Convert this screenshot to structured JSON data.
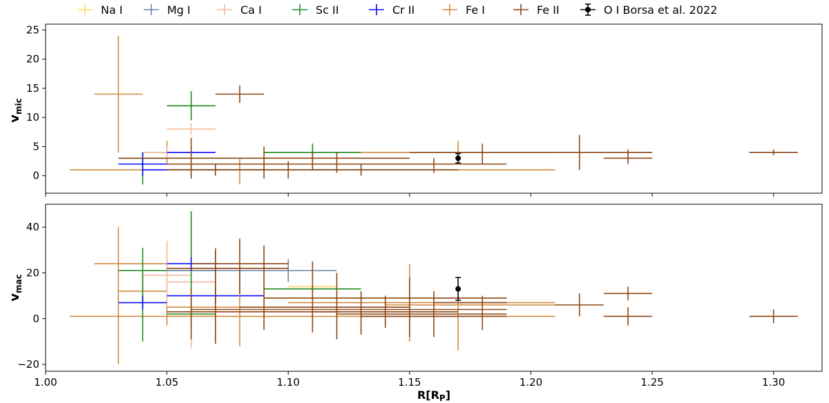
{
  "chart_data": {
    "type": "errorbar",
    "xlabel": "R[R",
    "xlabel_sub": "P",
    "xlabel_end": "]",
    "xlim": [
      1.0,
      1.32
    ],
    "xticks": [
      "1.00",
      "1.05",
      "1.10",
      "1.15",
      "1.20",
      "1.25",
      "1.30"
    ],
    "xtick_values": [
      1.0,
      1.05,
      1.1,
      1.15,
      1.2,
      1.25,
      1.3
    ],
    "legend_position": "top",
    "colors": {
      "Na I": "#ffd966",
      "Mg I": "#7080a8",
      "Ca I": "#f4b89a",
      "Sc II": "#1a8a1a",
      "Cr II": "#0a0aff",
      "Fe I": "#d28a3e",
      "Fe II": "#8b4513",
      "O I Borsa et al. 2022": "#000000"
    },
    "legend": [
      "Na I",
      "Mg I",
      "Ca I",
      "Sc II",
      "Cr II",
      "Fe I",
      "Fe II",
      "O I Borsa et al. 2022"
    ],
    "panels": [
      {
        "ylabel": "v",
        "ylabel_sub": "mic",
        "ylim": [
          -3,
          26
        ],
        "yticks": [
          "0",
          "5",
          "10",
          "15",
          "20",
          "25"
        ],
        "ytick_values": [
          0,
          5,
          10,
          15,
          20,
          25
        ],
        "points": [
          {
            "s": "Fe I",
            "x": 1.03,
            "xl": 1.02,
            "xh": 1.04,
            "y": 14,
            "yl": 4,
            "yh": 24
          },
          {
            "s": "Fe I",
            "x": 1.04,
            "xl": 1.01,
            "xh": 1.21,
            "y": 1,
            "yl": 0.5,
            "yh": 1.5
          },
          {
            "s": "Fe I",
            "x": 1.05,
            "xl": 1.04,
            "xh": 1.06,
            "y": 4,
            "yl": 2,
            "yh": 6
          },
          {
            "s": "Ca I",
            "x": 1.06,
            "xl": 1.05,
            "xh": 1.07,
            "y": 8,
            "yl": 7,
            "yh": 9
          },
          {
            "s": "Ca I",
            "x": 1.05,
            "xl": 1.04,
            "xh": 1.07,
            "y": 4,
            "yl": 3,
            "yh": 5
          },
          {
            "s": "Sc II",
            "x": 1.06,
            "xl": 1.05,
            "xh": 1.07,
            "y": 12,
            "yl": 9.5,
            "yh": 14.5
          },
          {
            "s": "Sc II",
            "x": 1.04,
            "xl": 1.03,
            "xh": 1.05,
            "y": 3,
            "yl": -1.5,
            "yh": 4
          },
          {
            "s": "Sc II",
            "x": 1.11,
            "xl": 1.09,
            "xh": 1.13,
            "y": 4,
            "yl": 2.5,
            "yh": 5.5
          },
          {
            "s": "Cr II",
            "x": 1.04,
            "xl": 1.03,
            "xh": 1.05,
            "y": 2,
            "yl": 0,
            "yh": 4
          },
          {
            "s": "Cr II",
            "x": 1.06,
            "xl": 1.05,
            "xh": 1.07,
            "y": 4,
            "yl": 3,
            "yh": 5
          },
          {
            "s": "Cr II",
            "x": 1.06,
            "xl": 1.04,
            "xh": 1.08,
            "y": 1,
            "yl": 0,
            "yh": 2
          },
          {
            "s": "Fe I",
            "x": 1.08,
            "xl": 1.05,
            "xh": 1.19,
            "y": 1,
            "yl": -1.5,
            "yh": 3
          },
          {
            "s": "Fe I",
            "x": 1.17,
            "xl": 1.13,
            "xh": 1.21,
            "y": 4,
            "yl": 3,
            "yh": 6
          },
          {
            "s": "Fe II",
            "x": 1.08,
            "xl": 1.07,
            "xh": 1.09,
            "y": 14,
            "yl": 12.5,
            "yh": 15.5
          },
          {
            "s": "Fe II",
            "x": 1.06,
            "xl": 1.03,
            "xh": 1.15,
            "y": 3,
            "yl": -0.5,
            "yh": 6.5
          },
          {
            "s": "Fe II",
            "x": 1.07,
            "xl": 1.05,
            "xh": 1.09,
            "y": 1,
            "yl": 0,
            "yh": 2
          },
          {
            "s": "Fe II",
            "x": 1.09,
            "xl": 1.05,
            "xh": 1.14,
            "y": 2,
            "yl": -0.5,
            "yh": 5
          },
          {
            "s": "Fe II",
            "x": 1.1,
            "xl": 1.08,
            "xh": 1.12,
            "y": 1,
            "yl": -0.5,
            "yh": 2.5
          },
          {
            "s": "Fe II",
            "x": 1.11,
            "xl": 1.09,
            "xh": 1.16,
            "y": 2,
            "yl": 1,
            "yh": 4
          },
          {
            "s": "Fe II",
            "x": 1.12,
            "xl": 1.1,
            "xh": 1.14,
            "y": 2,
            "yl": 0.5,
            "yh": 4
          },
          {
            "s": "Fe II",
            "x": 1.13,
            "xl": 1.11,
            "xh": 1.17,
            "y": 1,
            "yl": 0,
            "yh": 2
          },
          {
            "s": "Fe II",
            "x": 1.16,
            "xl": 1.13,
            "xh": 1.19,
            "y": 2,
            "yl": 0.5,
            "yh": 3
          },
          {
            "s": "Fe II",
            "x": 1.18,
            "xl": 1.15,
            "xh": 1.21,
            "y": 4,
            "yl": 2,
            "yh": 5.5
          },
          {
            "s": "Fe II",
            "x": 1.22,
            "xl": 1.21,
            "xh": 1.25,
            "y": 4,
            "yl": 1,
            "yh": 7
          },
          {
            "s": "Fe II",
            "x": 1.24,
            "xl": 1.23,
            "xh": 1.25,
            "y": 3,
            "yl": 2,
            "yh": 4.5
          },
          {
            "s": "Fe II",
            "x": 1.3,
            "xl": 1.29,
            "xh": 1.31,
            "y": 4,
            "yl": 3.5,
            "yh": 4.5
          },
          {
            "s": "O I Borsa et al. 2022",
            "x": 1.17,
            "y": 3,
            "yl": 2.2,
            "yh": 3.8
          }
        ]
      },
      {
        "ylabel": "v",
        "ylabel_sub": "mac",
        "ylim": [
          -23,
          50
        ],
        "yticks": [
          "−20",
          "0",
          "20",
          "40"
        ],
        "ytick_values": [
          -20,
          0,
          20,
          40
        ],
        "points": [
          {
            "s": "Fe I",
            "x": 1.03,
            "xl": 1.02,
            "xh": 1.05,
            "y": 24,
            "yl": -20,
            "yh": 40
          },
          {
            "s": "Fe I",
            "x": 1.05,
            "xl": 1.01,
            "xh": 1.21,
            "y": 1,
            "yl": -3,
            "yh": 7
          },
          {
            "s": "Fe I",
            "x": 1.04,
            "xl": 1.03,
            "xh": 1.05,
            "y": 12,
            "yl": 5,
            "yh": 20
          },
          {
            "s": "Ca I",
            "x": 1.05,
            "xl": 1.04,
            "xh": 1.06,
            "y": 19,
            "yl": 5,
            "yh": 34
          },
          {
            "s": "Ca I",
            "x": 1.06,
            "xl": 1.05,
            "xh": 1.07,
            "y": 16,
            "yl": -13,
            "yh": 27
          },
          {
            "s": "Sc II",
            "x": 1.04,
            "xl": 1.03,
            "xh": 1.05,
            "y": 21,
            "yl": -10,
            "yh": 31
          },
          {
            "s": "Sc II",
            "x": 1.06,
            "xl": 1.05,
            "xh": 1.07,
            "y": 21,
            "yl": 5,
            "yh": 47
          },
          {
            "s": "Sc II",
            "x": 1.06,
            "xl": 1.05,
            "xh": 1.07,
            "y": 2,
            "yl": -3,
            "yh": 6
          },
          {
            "s": "Sc II",
            "x": 1.11,
            "xl": 1.09,
            "xh": 1.13,
            "y": 13,
            "yl": 12,
            "yh": 14
          },
          {
            "s": "Mg I",
            "x": 1.07,
            "xl": 1.05,
            "xh": 1.08,
            "y": 21,
            "yl": 12,
            "yh": 31
          },
          {
            "s": "Mg I",
            "x": 1.1,
            "xl": 1.08,
            "xh": 1.12,
            "y": 21,
            "yl": 16,
            "yh": 26
          },
          {
            "s": "Na I",
            "x": 1.11,
            "xl": 1.1,
            "xh": 1.12,
            "y": 14,
            "yl": 13,
            "yh": 15
          },
          {
            "s": "Cr II",
            "x": 1.06,
            "xl": 1.05,
            "xh": 1.07,
            "y": 24,
            "yl": 21,
            "yh": 27
          },
          {
            "s": "Cr II",
            "x": 1.07,
            "xl": 1.05,
            "xh": 1.09,
            "y": 10,
            "yl": 7,
            "yh": 13
          },
          {
            "s": "Cr II",
            "x": 1.04,
            "xl": 1.03,
            "xh": 1.05,
            "y": 7,
            "yl": 4,
            "yh": 10
          },
          {
            "s": "Fe I",
            "x": 1.08,
            "xl": 1.05,
            "xh": 1.1,
            "y": 5,
            "yl": -12,
            "yh": 21
          },
          {
            "s": "Fe I",
            "x": 1.15,
            "xl": 1.1,
            "xh": 1.21,
            "y": 7,
            "yl": -10,
            "yh": 24
          },
          {
            "s": "Fe I",
            "x": 1.17,
            "xl": 1.14,
            "xh": 1.21,
            "y": 6,
            "yl": -14,
            "yh": 10
          },
          {
            "s": "Fe II",
            "x": 1.08,
            "xl": 1.06,
            "xh": 1.1,
            "y": 24,
            "yl": 11,
            "yh": 35
          },
          {
            "s": "Fe II",
            "x": 1.07,
            "xl": 1.05,
            "xh": 1.1,
            "y": 22,
            "yl": -11,
            "yh": 30
          },
          {
            "s": "Fe II",
            "x": 1.06,
            "xl": 1.05,
            "xh": 1.12,
            "y": 3,
            "yl": -9,
            "yh": 13
          },
          {
            "s": "Fe II",
            "x": 1.09,
            "xl": 1.06,
            "xh": 1.14,
            "y": 4,
            "yl": -5,
            "yh": 32
          },
          {
            "s": "Fe II",
            "x": 1.11,
            "xl": 1.08,
            "xh": 1.15,
            "y": 5,
            "yl": -6,
            "yh": 25
          },
          {
            "s": "Fe II",
            "x": 1.12,
            "xl": 1.09,
            "xh": 1.19,
            "y": 9,
            "yl": -9,
            "yh": 20
          },
          {
            "s": "Fe II",
            "x": 1.13,
            "xl": 1.11,
            "xh": 1.17,
            "y": 3,
            "yl": -7,
            "yh": 12
          },
          {
            "s": "Fe II",
            "x": 1.14,
            "xl": 1.12,
            "xh": 1.19,
            "y": 2,
            "yl": -4,
            "yh": 10
          },
          {
            "s": "Fe II",
            "x": 1.15,
            "xl": 1.13,
            "xh": 1.19,
            "y": 1,
            "yl": -8,
            "yh": 18
          },
          {
            "s": "Fe II",
            "x": 1.16,
            "xl": 1.14,
            "xh": 1.19,
            "y": 4,
            "yl": -8,
            "yh": 12
          },
          {
            "s": "Fe II",
            "x": 1.18,
            "xl": 1.16,
            "xh": 1.19,
            "y": 7,
            "yl": -5,
            "yh": 10
          },
          {
            "s": "Fe II",
            "x": 1.22,
            "xl": 1.21,
            "xh": 1.23,
            "y": 6,
            "yl": 1,
            "yh": 11
          },
          {
            "s": "Fe II",
            "x": 1.24,
            "xl": 1.23,
            "xh": 1.25,
            "y": 11,
            "yl": 8,
            "yh": 14
          },
          {
            "s": "Fe II",
            "x": 1.24,
            "xl": 1.23,
            "xh": 1.25,
            "y": 1,
            "yl": -3,
            "yh": 5
          },
          {
            "s": "Fe II",
            "x": 1.3,
            "xl": 1.29,
            "xh": 1.31,
            "y": 1,
            "yl": -2,
            "yh": 4
          },
          {
            "s": "O I Borsa et al. 2022",
            "x": 1.17,
            "y": 13,
            "yl": 8,
            "yh": 18
          }
        ]
      }
    ]
  }
}
